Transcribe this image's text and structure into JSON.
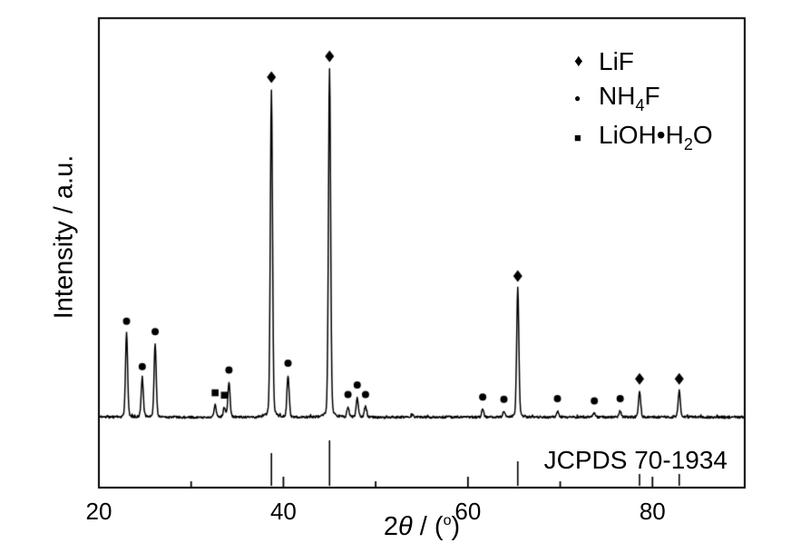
{
  "chart_data": {
    "type": "line",
    "title": "",
    "xlabel": "2θ / (°)",
    "xlabel_parts": [
      {
        "t": "2"
      },
      {
        "t": "θ",
        "italic": true
      },
      {
        "t": " / ("
      },
      {
        "t": "o",
        "sup": true
      },
      {
        "t": ")"
      }
    ],
    "ylabel": "Intensity / a.u.",
    "xlim": [
      20,
      90
    ],
    "x_major_ticks": [
      20,
      40,
      60,
      80
    ],
    "x_minor_ticks": [
      30,
      50,
      70,
      90
    ],
    "grid": false,
    "y_axis_units": "arbitrary",
    "legend": {
      "position": "top-right",
      "items": [
        {
          "phase": "LiF",
          "marker": "diamond",
          "parts": [
            {
              "t": "LiF"
            }
          ]
        },
        {
          "phase": "NH4F",
          "marker": "circle",
          "parts": [
            {
              "t": "NH"
            },
            {
              "t": "4",
              "sub": true
            },
            {
              "t": "F"
            }
          ]
        },
        {
          "phase": "LiOH-H2O",
          "marker": "square",
          "parts": [
            {
              "t": "LiOH"
            },
            {
              "t": "•"
            },
            {
              "t": "H"
            },
            {
              "t": "2",
              "sub": true
            },
            {
              "t": "O"
            }
          ]
        }
      ]
    },
    "peaks": [
      {
        "two_theta": 23.0,
        "rel_intensity": 0.24,
        "phase": "NH4F"
      },
      {
        "two_theta": 24.7,
        "rel_intensity": 0.11,
        "phase": "NH4F"
      },
      {
        "two_theta": 26.1,
        "rel_intensity": 0.21,
        "phase": "NH4F"
      },
      {
        "two_theta": 32.6,
        "rel_intensity": 0.035,
        "phase": "LiOH-H2O"
      },
      {
        "two_theta": 33.6,
        "rel_intensity": 0.028,
        "phase": "LiOH-H2O"
      },
      {
        "two_theta": 34.1,
        "rel_intensity": 0.1,
        "phase": "NH4F"
      },
      {
        "two_theta": 38.7,
        "rel_intensity": 0.94,
        "phase": "LiF"
      },
      {
        "two_theta": 40.5,
        "rel_intensity": 0.12,
        "phase": "NH4F"
      },
      {
        "two_theta": 45.0,
        "rel_intensity": 1.0,
        "phase": "LiF"
      },
      {
        "two_theta": 47.0,
        "rel_intensity": 0.03,
        "phase": "NH4F"
      },
      {
        "two_theta": 48.0,
        "rel_intensity": 0.057,
        "phase": "NH4F"
      },
      {
        "two_theta": 48.9,
        "rel_intensity": 0.03,
        "phase": "NH4F"
      },
      {
        "two_theta": 54.0,
        "rel_intensity": 0.008,
        "phase": null
      },
      {
        "two_theta": 61.6,
        "rel_intensity": 0.023,
        "phase": "NH4F"
      },
      {
        "two_theta": 63.9,
        "rel_intensity": 0.016,
        "phase": "NH4F"
      },
      {
        "two_theta": 65.4,
        "rel_intensity": 0.37,
        "phase": "LiF"
      },
      {
        "two_theta": 69.7,
        "rel_intensity": 0.018,
        "phase": "NH4F"
      },
      {
        "two_theta": 73.7,
        "rel_intensity": 0.012,
        "phase": "NH4F"
      },
      {
        "two_theta": 76.5,
        "rel_intensity": 0.018,
        "phase": "NH4F"
      },
      {
        "two_theta": 78.6,
        "rel_intensity": 0.075,
        "phase": "LiF"
      },
      {
        "two_theta": 82.9,
        "rel_intensity": 0.075,
        "phase": "LiF"
      }
    ],
    "reference": {
      "label": "JCPDS 70-1934",
      "sticks": [
        {
          "two_theta": 38.7,
          "rel_intensity": 0.72
        },
        {
          "two_theta": 45.0,
          "rel_intensity": 1.0
        },
        {
          "two_theta": 65.4,
          "rel_intensity": 0.54
        },
        {
          "two_theta": 78.6,
          "rel_intensity": 0.26
        },
        {
          "two_theta": 82.9,
          "rel_intensity": 0.26
        }
      ]
    },
    "colors": {
      "line": "#000000",
      "background": "#ffffff",
      "text": "#000000"
    }
  }
}
